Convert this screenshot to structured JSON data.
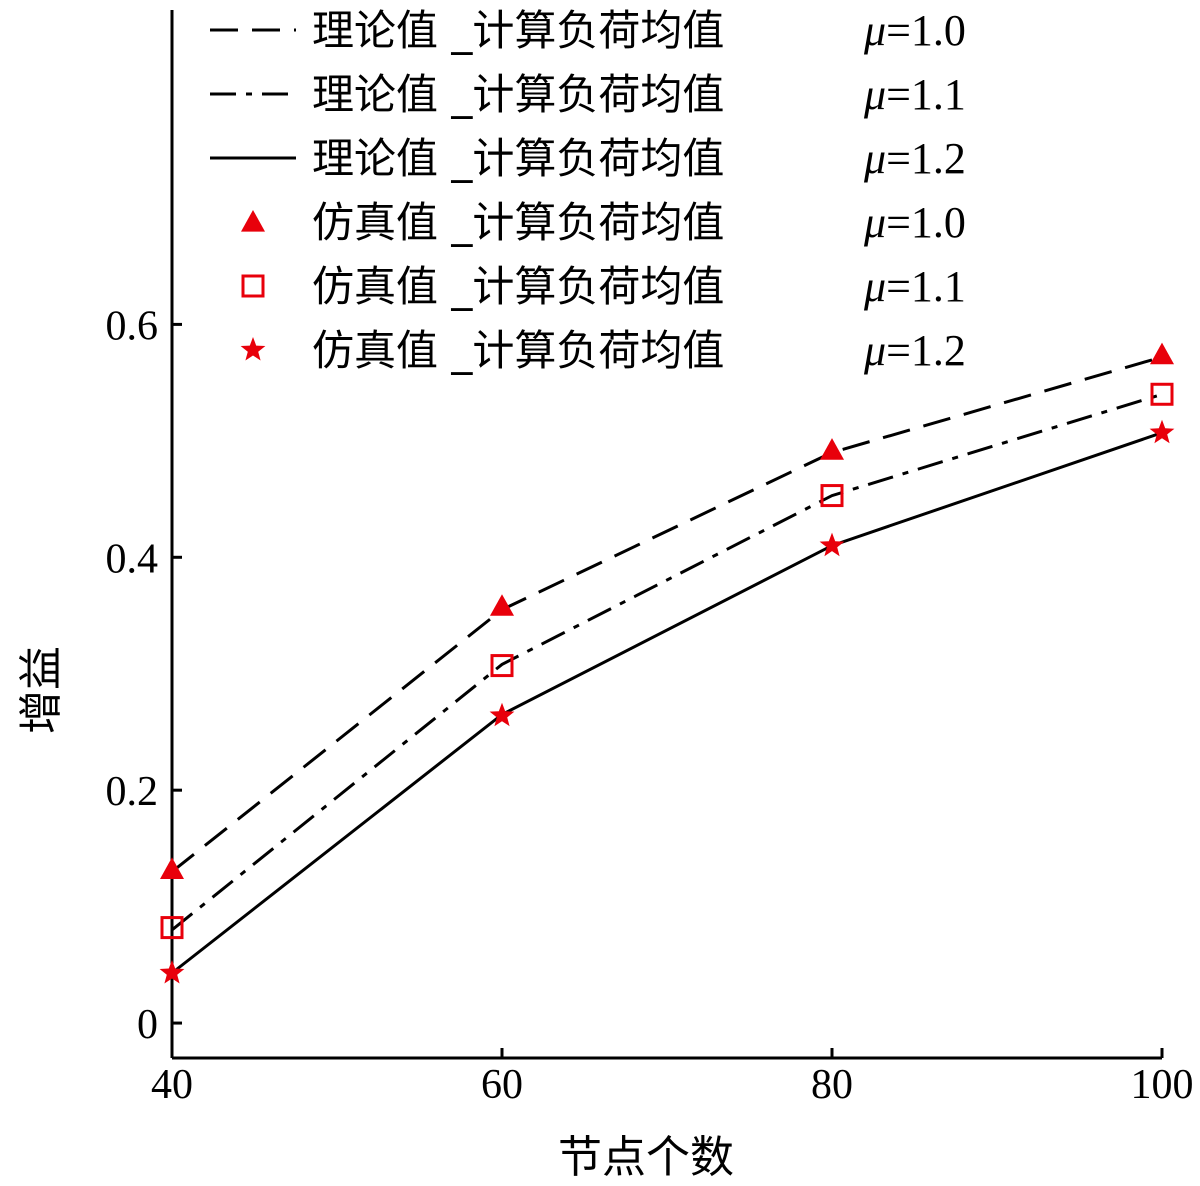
{
  "chart_data": {
    "type": "line",
    "title": "",
    "xlabel": "节点个数",
    "ylabel": "增益",
    "x": [
      40,
      60,
      80,
      100
    ],
    "xticks": [
      "40",
      "60",
      "80",
      "100"
    ],
    "yticks": [
      "0",
      "0.2",
      "0.4",
      "0.6"
    ],
    "xlim": [
      40,
      100
    ],
    "ylim": [
      -0.03,
      0.87
    ],
    "grid": false,
    "legend_position": "top",
    "series": [
      {
        "name": "理论值 _计算负荷均值",
        "mu_symbol": "μ",
        "mu_value": "=1.0",
        "kind": "theory",
        "line": "dashed",
        "color": "#000000",
        "values": [
          0.13,
          0.355,
          0.49,
          0.572
        ]
      },
      {
        "name": "理论值 _计算负荷均值",
        "mu_symbol": "μ",
        "mu_value": "=1.1",
        "kind": "theory",
        "line": "dashdot",
        "color": "#000000",
        "values": [
          0.08,
          0.308,
          0.453,
          0.54
        ]
      },
      {
        "name": "理论值 _计算负荷均值",
        "mu_symbol": "μ",
        "mu_value": "=1.2",
        "kind": "theory",
        "line": "solid",
        "color": "#000000",
        "values": [
          0.043,
          0.265,
          0.41,
          0.507
        ]
      },
      {
        "name": "仿真值 _计算负荷均值",
        "mu_symbol": "μ",
        "mu_value": "=1.0",
        "kind": "simulation",
        "marker": "triangle",
        "color": "#e8000b",
        "values": [
          0.132,
          0.358,
          0.492,
          0.574
        ]
      },
      {
        "name": "仿真值 _计算负荷均值",
        "mu_symbol": "μ",
        "mu_value": "=1.1",
        "kind": "simulation",
        "marker": "square",
        "color": "#e8000b",
        "values": [
          0.082,
          0.307,
          0.453,
          0.54
        ]
      },
      {
        "name": "仿真值 _计算负荷均值",
        "mu_symbol": "μ",
        "mu_value": "=1.2",
        "kind": "simulation",
        "marker": "star",
        "color": "#e8000b",
        "values": [
          0.043,
          0.264,
          0.41,
          0.507
        ]
      }
    ]
  }
}
